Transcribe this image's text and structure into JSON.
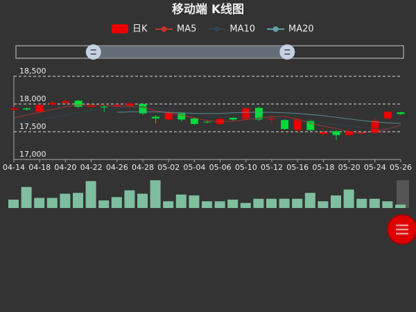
{
  "chart_data": {
    "type": "candlestick",
    "title": "移动端 K线图",
    "categories": [
      "04-14",
      null,
      "04-18",
      null,
      "04-20",
      null,
      "04-22",
      null,
      "04-26",
      null,
      "04-28",
      null,
      "05-02",
      null,
      "05-04",
      null,
      "05-06",
      null,
      "05-10",
      null,
      "05-12",
      null,
      "05-16",
      null,
      "05-18",
      null,
      "05-20",
      null,
      "05-24",
      null,
      "05-26"
    ],
    "candle": {
      "name": "日K",
      "up_color": "#ec0000",
      "down_color": "#00da3c",
      "open": [
        17900,
        17920,
        17860,
        17990,
        18020,
        18060,
        17950,
        17950,
        17960,
        17970,
        18000,
        17770,
        17720,
        17830,
        17740,
        17680,
        17640,
        17750,
        17730,
        17930,
        17720,
        17710,
        17530,
        17700,
        17460,
        17510,
        17440,
        17470,
        17480,
        17740,
        17850
      ],
      "close": [
        17920,
        17900,
        17980,
        18020,
        18050,
        17950,
        17970,
        17940,
        17980,
        18010,
        17830,
        17740,
        17840,
        17720,
        17640,
        17670,
        17730,
        17720,
        17920,
        17720,
        17740,
        17550,
        17730,
        17530,
        17490,
        17440,
        17510,
        17480,
        17700,
        17860,
        17820
      ],
      "low": [
        17880,
        17880,
        17840,
        17970,
        18000,
        17930,
        17900,
        17850,
        17940,
        17920,
        17800,
        17650,
        17700,
        17680,
        17620,
        17650,
        17620,
        17700,
        17700,
        17700,
        17650,
        17530,
        17500,
        17510,
        17420,
        17350,
        17420,
        17460,
        17470,
        17720,
        17800
      ],
      "high": [
        17950,
        17940,
        18000,
        18050,
        18100,
        18080,
        18000,
        17980,
        18000,
        18030,
        18020,
        17800,
        17870,
        17850,
        17760,
        17700,
        17760,
        17770,
        17940,
        17950,
        17800,
        17730,
        17750,
        17720,
        17560,
        17530,
        17530,
        17500,
        17760,
        17880,
        17860
      ]
    },
    "series": [
      {
        "name": "MA5",
        "color": "#c23531",
        "values": [
          17750,
          17800,
          17850,
          17900,
          17950,
          17980,
          17990,
          17970,
          17960,
          17960,
          17940,
          17880,
          17840,
          17800,
          17750,
          17700,
          17680,
          17690,
          17720,
          17750,
          17770,
          17780,
          17720,
          17650,
          17600,
          17560,
          17500,
          17480,
          17500,
          17550,
          17620
        ]
      },
      {
        "name": "MA10",
        "color": "#2f4554",
        "values": [
          17650,
          17680,
          17720,
          17760,
          17800,
          17850,
          17880,
          17900,
          17920,
          17940,
          17950,
          17920,
          17890,
          17860,
          17830,
          17800,
          17780,
          17760,
          17750,
          17740,
          17740,
          17730,
          17710,
          17690,
          17660,
          17630,
          17600,
          17580,
          17560,
          17560,
          17580
        ]
      },
      {
        "name": "MA20",
        "color": "#61a0a8",
        "values": [
          null,
          null,
          null,
          null,
          null,
          null,
          null,
          null,
          17850,
          17860,
          17860,
          17860,
          17850,
          17840,
          17830,
          17830,
          17830,
          17840,
          17850,
          17850,
          17850,
          17840,
          17830,
          17810,
          17790,
          17760,
          17730,
          17700,
          17680,
          17660,
          17650
        ]
      }
    ],
    "ylim": [
      17000,
      18500
    ],
    "yticks": [
      {
        "value": 17000,
        "label": "17,000"
      },
      {
        "value": 17500,
        "label": "17,500"
      },
      {
        "value": 18000,
        "label": "18,000"
      },
      {
        "value": 18500,
        "label": "18,500"
      }
    ],
    "grid": true,
    "volume": {
      "color": "#7fbe9e",
      "values": [
        10,
        25,
        12,
        12,
        17,
        18,
        32,
        9,
        13,
        21,
        17,
        33,
        8,
        16,
        15,
        8,
        8,
        10,
        6,
        11,
        11,
        11,
        11,
        18,
        8,
        15,
        22,
        11,
        11,
        8,
        4
      ],
      "ylim": [
        0,
        33
      ]
    },
    "zoom": {
      "start": 20,
      "end": 70
    }
  }
}
